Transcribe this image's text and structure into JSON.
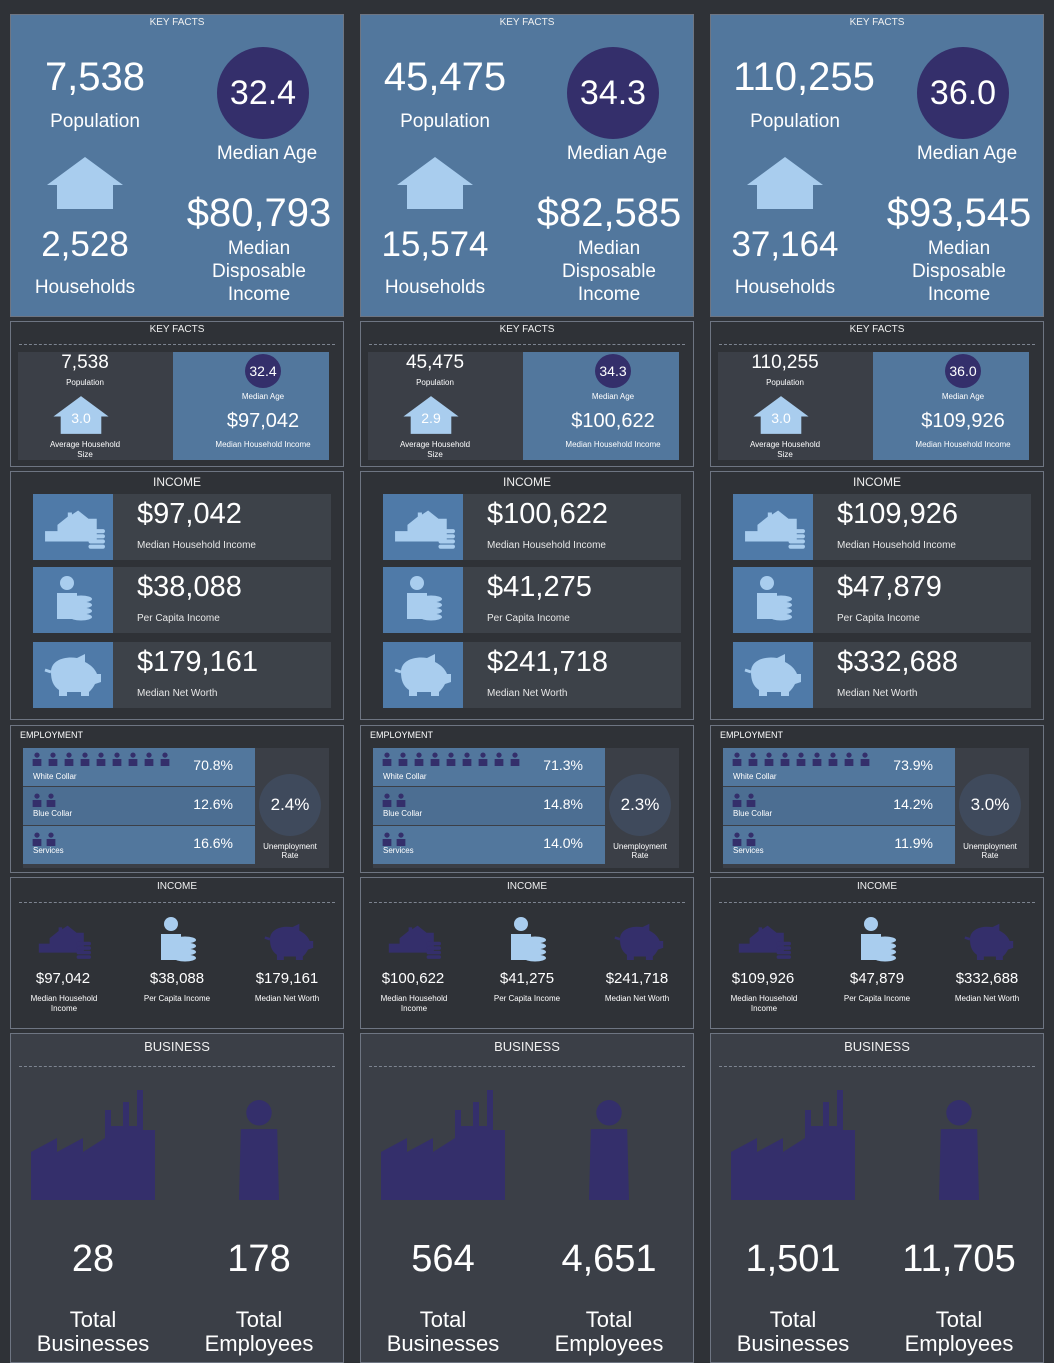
{
  "colors": {
    "bg": "#2f3237",
    "panel_blue": "#52779d",
    "navy": "#342f6b",
    "light_blue": "#a9cdee"
  },
  "labels": {
    "key_facts": "KEY FACTS",
    "income_upper": "INCOME",
    "employment": "EMPLOYMENT",
    "business": "BUSINESS",
    "population": "Population",
    "median_age": "Median Age",
    "households": "Households",
    "median_disp_1": "Median",
    "median_disp_2": "Disposable",
    "median_disp_3": "Income",
    "avg_hh_size": "Average Household Size",
    "median_hh_income": "Median Household Income",
    "per_capita_income": "Per Capita Income",
    "median_net_worth": "Median Net Worth",
    "white_collar": "White Collar",
    "blue_collar": "Blue Collar",
    "services": "Services",
    "unemployment_rate": "Unemployment Rate",
    "total": "Total",
    "businesses": "Businesses",
    "employees": "Employees"
  },
  "icons": [
    "house-icon",
    "house-coins-icon",
    "person-coins-icon",
    "piggy-bank-icon",
    "worker-icon",
    "factory-icon",
    "person-icon"
  ],
  "areas": [
    {
      "population": "7,538",
      "median_age": "32.4",
      "households": "2,528",
      "median_disposable_income": "$80,793",
      "avg_household_size": "3.0",
      "median_household_income": "$97,042",
      "per_capita_income": "$38,088",
      "median_net_worth": "$179,161",
      "white_collar": "70.8%",
      "blue_collar": "12.6%",
      "services": "16.6%",
      "unemployment_rate": "2.4%",
      "total_businesses": "28",
      "total_employees": "178"
    },
    {
      "population": "45,475",
      "median_age": "34.3",
      "households": "15,574",
      "median_disposable_income": "$82,585",
      "avg_household_size": "2.9",
      "median_household_income": "$100,622",
      "per_capita_income": "$41,275",
      "median_net_worth": "$241,718",
      "white_collar": "71.3%",
      "blue_collar": "14.8%",
      "services": "14.0%",
      "unemployment_rate": "2.3%",
      "total_businesses": "564",
      "total_employees": "4,651"
    },
    {
      "population": "110,255",
      "median_age": "36.0",
      "households": "37,164",
      "median_disposable_income": "$93,545",
      "avg_household_size": "3.0",
      "median_household_income": "$109,926",
      "per_capita_income": "$47,879",
      "median_net_worth": "$332,688",
      "white_collar": "73.9%",
      "blue_collar": "14.2%",
      "services": "11.9%",
      "unemployment_rate": "3.0%",
      "total_businesses": "1,501",
      "total_employees": "11,705"
    }
  ]
}
